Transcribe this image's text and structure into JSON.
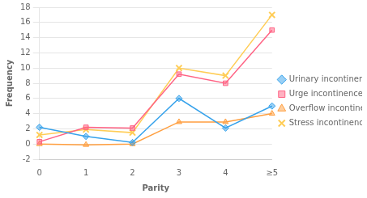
{
  "chart_data": {
    "type": "line",
    "categories": [
      "0",
      "1",
      "2",
      "3",
      "4",
      "≥5"
    ],
    "series": [
      {
        "name": "Urinary incontinence",
        "values": [
          2.2,
          1.0,
          0.2,
          6.0,
          2.1,
          5.0
        ],
        "marker": "diamond"
      },
      {
        "name": "Urge incontinence",
        "values": [
          0.3,
          2.2,
          2.1,
          9.2,
          8.0,
          15.0
        ],
        "marker": "square"
      },
      {
        "name": "Overflow incontinence",
        "values": [
          0.0,
          -0.1,
          0.0,
          2.9,
          2.9,
          4.0
        ],
        "marker": "triangle"
      },
      {
        "name": "Stress incontinence",
        "values": [
          1.2,
          1.9,
          1.5,
          10.0,
          9.0,
          17.0
        ],
        "marker": "x"
      }
    ],
    "xlabel": "Parity",
    "ylabel": "Frequency",
    "ylim": [
      -2,
      18
    ],
    "yticks": [
      -2,
      0,
      2,
      4,
      6,
      8,
      10,
      12,
      14,
      16,
      18
    ],
    "grid": "y",
    "legend": "right"
  }
}
